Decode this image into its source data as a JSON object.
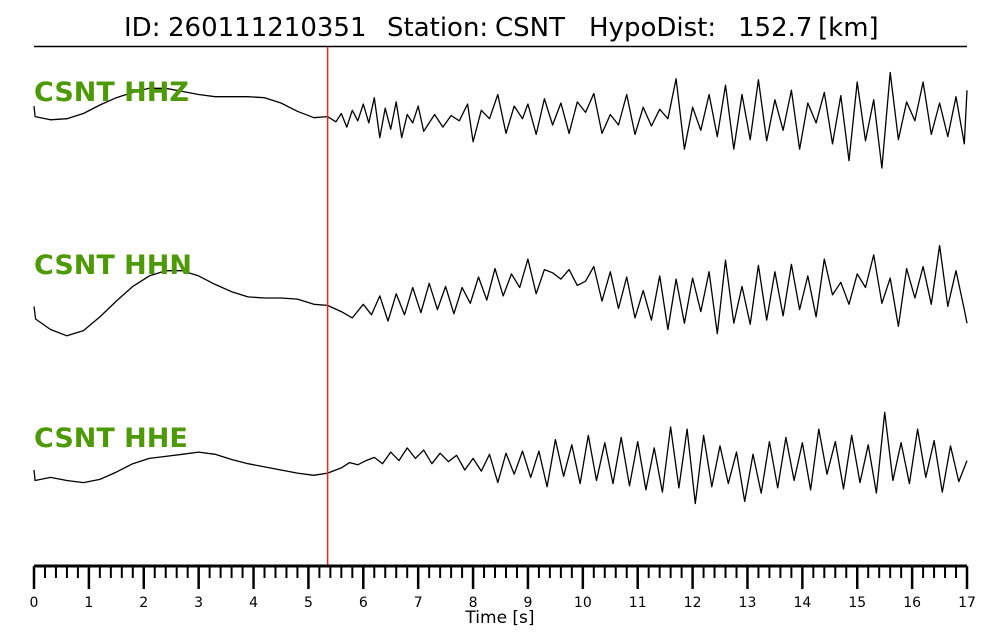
{
  "header": {
    "id_label": "ID:",
    "id_value": "260111210351",
    "station_label": "Station:",
    "station_value": "CSNT",
    "dist_label": "HypoDist:",
    "dist_value": "152.7",
    "dist_unit": "[km]"
  },
  "colors": {
    "trace": "#000000",
    "pick": "#e8261f",
    "channel_label": "#4e9a06",
    "axis": "#000000"
  },
  "chart_data": {
    "type": "line",
    "title": "ID: 260111210351   Station: CSNT   HypoDist:   152.7 [km]",
    "xlabel": "Time [s]",
    "ylabel": "",
    "xlim": [
      0,
      17
    ],
    "x_ticks": [
      0,
      1,
      2,
      3,
      4,
      5,
      6,
      7,
      8,
      9,
      10,
      11,
      12,
      13,
      14,
      15,
      16,
      17
    ],
    "x_minor_step": 0.2,
    "grid": false,
    "pick_time": 5.35,
    "series": [
      {
        "name": "CSNT HHZ",
        "points": [
          [
            0.0,
            0.9
          ],
          [
            0.02,
            0.4
          ],
          [
            0.3,
            0.25
          ],
          [
            0.6,
            0.3
          ],
          [
            0.9,
            0.55
          ],
          [
            1.2,
            0.95
          ],
          [
            1.5,
            1.3
          ],
          [
            1.8,
            1.55
          ],
          [
            2.1,
            1.75
          ],
          [
            2.4,
            1.75
          ],
          [
            2.7,
            1.6
          ],
          [
            3.0,
            1.45
          ],
          [
            3.3,
            1.35
          ],
          [
            3.6,
            1.35
          ],
          [
            3.9,
            1.35
          ],
          [
            4.2,
            1.3
          ],
          [
            4.5,
            1.05
          ],
          [
            4.8,
            0.65
          ],
          [
            5.1,
            0.35
          ],
          [
            5.35,
            0.4
          ],
          [
            5.5,
            0.15
          ],
          [
            5.6,
            0.55
          ],
          [
            5.7,
            -0.1
          ],
          [
            5.8,
            0.7
          ],
          [
            5.9,
            0.2
          ],
          [
            6.0,
            1.0
          ],
          [
            6.1,
            0.1
          ],
          [
            6.2,
            1.3
          ],
          [
            6.3,
            -0.6
          ],
          [
            6.4,
            0.8
          ],
          [
            6.5,
            -0.2
          ],
          [
            6.6,
            1.1
          ],
          [
            6.7,
            -0.6
          ],
          [
            6.8,
            0.5
          ],
          [
            6.9,
            0.1
          ],
          [
            7.0,
            0.9
          ],
          [
            7.1,
            -0.3
          ],
          [
            7.3,
            0.5
          ],
          [
            7.45,
            -0.1
          ],
          [
            7.6,
            0.45
          ],
          [
            7.75,
            0.2
          ],
          [
            7.9,
            1.0
          ],
          [
            8.0,
            -0.8
          ],
          [
            8.15,
            0.7
          ],
          [
            8.3,
            0.3
          ],
          [
            8.45,
            1.45
          ],
          [
            8.6,
            -0.4
          ],
          [
            8.75,
            0.9
          ],
          [
            8.9,
            0.3
          ],
          [
            9.0,
            1.0
          ],
          [
            9.15,
            -0.45
          ],
          [
            9.3,
            1.25
          ],
          [
            9.45,
            0.0
          ],
          [
            9.6,
            1.05
          ],
          [
            9.75,
            -0.4
          ],
          [
            9.9,
            1.1
          ],
          [
            10.05,
            0.6
          ],
          [
            10.2,
            1.5
          ],
          [
            10.35,
            -0.4
          ],
          [
            10.5,
            0.5
          ],
          [
            10.65,
            0.0
          ],
          [
            10.8,
            1.45
          ],
          [
            10.95,
            -0.45
          ],
          [
            11.1,
            0.85
          ],
          [
            11.25,
            -0.05
          ],
          [
            11.4,
            0.75
          ],
          [
            11.55,
            0.3
          ],
          [
            11.7,
            2.2
          ],
          [
            11.85,
            -1.15
          ],
          [
            12.0,
            0.85
          ],
          [
            12.15,
            -0.25
          ],
          [
            12.3,
            1.45
          ],
          [
            12.45,
            -0.55
          ],
          [
            12.6,
            1.9
          ],
          [
            12.75,
            -1.15
          ],
          [
            12.9,
            1.45
          ],
          [
            13.05,
            -0.7
          ],
          [
            13.2,
            2.15
          ],
          [
            13.35,
            -0.75
          ],
          [
            13.5,
            1.2
          ],
          [
            13.65,
            -0.25
          ],
          [
            13.8,
            1.65
          ],
          [
            13.95,
            -1.15
          ],
          [
            14.1,
            1.05
          ],
          [
            14.25,
            0.1
          ],
          [
            14.4,
            1.55
          ],
          [
            14.55,
            -0.9
          ],
          [
            14.7,
            1.4
          ],
          [
            14.85,
            -1.7
          ],
          [
            15.0,
            2.05
          ],
          [
            15.15,
            -0.75
          ],
          [
            15.3,
            1.2
          ],
          [
            15.45,
            -2.05
          ],
          [
            15.6,
            2.5
          ],
          [
            15.75,
            -0.7
          ],
          [
            15.9,
            1.1
          ],
          [
            16.05,
            0.2
          ],
          [
            16.2,
            2.05
          ],
          [
            16.35,
            -0.45
          ],
          [
            16.5,
            1.05
          ],
          [
            16.65,
            -0.55
          ],
          [
            16.8,
            1.35
          ],
          [
            16.95,
            -0.9
          ],
          [
            17.0,
            1.65
          ]
        ]
      },
      {
        "name": "CSNT HHN",
        "points": [
          [
            0.0,
            -0.4
          ],
          [
            0.03,
            -1.0
          ],
          [
            0.3,
            -1.5
          ],
          [
            0.6,
            -1.8
          ],
          [
            0.9,
            -1.55
          ],
          [
            1.2,
            -0.9
          ],
          [
            1.5,
            -0.15
          ],
          [
            1.8,
            0.55
          ],
          [
            2.1,
            1.05
          ],
          [
            2.4,
            1.3
          ],
          [
            2.7,
            1.3
          ],
          [
            3.0,
            1.05
          ],
          [
            3.3,
            0.65
          ],
          [
            3.6,
            0.3
          ],
          [
            3.9,
            0.05
          ],
          [
            4.2,
            0.0
          ],
          [
            4.5,
            0.0
          ],
          [
            4.8,
            -0.05
          ],
          [
            5.1,
            -0.3
          ],
          [
            5.35,
            -0.35
          ],
          [
            5.6,
            -0.65
          ],
          [
            5.8,
            -0.95
          ],
          [
            6.0,
            -0.3
          ],
          [
            6.15,
            -0.8
          ],
          [
            6.3,
            0.1
          ],
          [
            6.45,
            -1.1
          ],
          [
            6.6,
            0.2
          ],
          [
            6.75,
            -0.8
          ],
          [
            6.9,
            0.5
          ],
          [
            7.05,
            -0.7
          ],
          [
            7.2,
            0.7
          ],
          [
            7.35,
            -0.55
          ],
          [
            7.5,
            0.55
          ],
          [
            7.65,
            -0.75
          ],
          [
            7.8,
            0.5
          ],
          [
            7.95,
            -0.25
          ],
          [
            8.1,
            1.0
          ],
          [
            8.25,
            -0.1
          ],
          [
            8.4,
            1.4
          ],
          [
            8.55,
            0.1
          ],
          [
            8.7,
            1.15
          ],
          [
            8.85,
            0.5
          ],
          [
            9.0,
            1.85
          ],
          [
            9.15,
            0.2
          ],
          [
            9.3,
            1.35
          ],
          [
            9.45,
            1.2
          ],
          [
            9.6,
            0.9
          ],
          [
            9.75,
            1.35
          ],
          [
            9.9,
            0.6
          ],
          [
            10.05,
            0.8
          ],
          [
            10.2,
            1.5
          ],
          [
            10.35,
            -0.15
          ],
          [
            10.5,
            1.25
          ],
          [
            10.65,
            -0.5
          ],
          [
            10.8,
            1.0
          ],
          [
            10.95,
            -0.95
          ],
          [
            11.1,
            0.35
          ],
          [
            11.25,
            -1.05
          ],
          [
            11.4,
            1.05
          ],
          [
            11.55,
            -1.5
          ],
          [
            11.7,
            0.9
          ],
          [
            11.85,
            -1.2
          ],
          [
            12.0,
            0.95
          ],
          [
            12.15,
            -0.65
          ],
          [
            12.3,
            1.25
          ],
          [
            12.45,
            -1.7
          ],
          [
            12.6,
            1.8
          ],
          [
            12.75,
            -1.2
          ],
          [
            12.9,
            0.55
          ],
          [
            13.05,
            -1.25
          ],
          [
            13.2,
            1.55
          ],
          [
            13.35,
            -1.05
          ],
          [
            13.5,
            1.25
          ],
          [
            13.65,
            -0.85
          ],
          [
            13.8,
            1.6
          ],
          [
            13.95,
            -0.55
          ],
          [
            14.1,
            1.05
          ],
          [
            14.25,
            -0.9
          ],
          [
            14.4,
            1.85
          ],
          [
            14.55,
            0.15
          ],
          [
            14.7,
            0.75
          ],
          [
            14.85,
            -0.3
          ],
          [
            15.0,
            1.15
          ],
          [
            15.15,
            0.5
          ],
          [
            15.3,
            2.05
          ],
          [
            15.45,
            -0.25
          ],
          [
            15.6,
            0.95
          ],
          [
            15.75,
            -1.35
          ],
          [
            15.9,
            1.4
          ],
          [
            16.05,
            0.0
          ],
          [
            16.2,
            1.5
          ],
          [
            16.35,
            -0.3
          ],
          [
            16.5,
            2.5
          ],
          [
            16.65,
            -0.4
          ],
          [
            16.8,
            1.3
          ],
          [
            16.95,
            -0.55
          ],
          [
            17.0,
            -1.2
          ]
        ]
      },
      {
        "name": "CSNT HHE",
        "points": [
          [
            0.0,
            0.0
          ],
          [
            0.02,
            -0.5
          ],
          [
            0.3,
            -0.35
          ],
          [
            0.6,
            -0.5
          ],
          [
            0.9,
            -0.6
          ],
          [
            1.2,
            -0.45
          ],
          [
            1.5,
            -0.1
          ],
          [
            1.8,
            0.3
          ],
          [
            2.1,
            0.55
          ],
          [
            2.4,
            0.65
          ],
          [
            2.7,
            0.75
          ],
          [
            3.0,
            0.85
          ],
          [
            3.3,
            0.75
          ],
          [
            3.6,
            0.5
          ],
          [
            3.9,
            0.3
          ],
          [
            4.2,
            0.15
          ],
          [
            4.5,
            0.0
          ],
          [
            4.8,
            -0.15
          ],
          [
            5.1,
            -0.25
          ],
          [
            5.35,
            -0.15
          ],
          [
            5.6,
            0.1
          ],
          [
            5.75,
            0.35
          ],
          [
            5.9,
            0.25
          ],
          [
            6.05,
            0.45
          ],
          [
            6.2,
            0.6
          ],
          [
            6.35,
            0.3
          ],
          [
            6.5,
            0.85
          ],
          [
            6.65,
            0.45
          ],
          [
            6.8,
            1.05
          ],
          [
            6.95,
            0.55
          ],
          [
            7.1,
            0.95
          ],
          [
            7.25,
            0.3
          ],
          [
            7.4,
            0.8
          ],
          [
            7.55,
            0.4
          ],
          [
            7.7,
            0.7
          ],
          [
            7.85,
            0.0
          ],
          [
            8.0,
            0.55
          ],
          [
            8.15,
            -0.05
          ],
          [
            8.3,
            0.75
          ],
          [
            8.45,
            -0.6
          ],
          [
            8.6,
            0.8
          ],
          [
            8.75,
            -0.2
          ],
          [
            8.9,
            0.9
          ],
          [
            9.05,
            -0.35
          ],
          [
            9.2,
            0.9
          ],
          [
            9.35,
            -0.8
          ],
          [
            9.5,
            1.45
          ],
          [
            9.65,
            -0.3
          ],
          [
            9.8,
            1.2
          ],
          [
            9.95,
            -0.65
          ],
          [
            10.1,
            1.65
          ],
          [
            10.25,
            -0.5
          ],
          [
            10.4,
            1.3
          ],
          [
            10.55,
            -0.65
          ],
          [
            10.7,
            1.55
          ],
          [
            10.85,
            -0.75
          ],
          [
            11.0,
            1.35
          ],
          [
            11.15,
            -0.95
          ],
          [
            11.3,
            1.05
          ],
          [
            11.45,
            -1.05
          ],
          [
            11.6,
            2.05
          ],
          [
            11.75,
            -0.85
          ],
          [
            11.9,
            1.95
          ],
          [
            12.05,
            -1.6
          ],
          [
            12.2,
            1.65
          ],
          [
            12.35,
            -0.8
          ],
          [
            12.5,
            1.15
          ],
          [
            12.65,
            -0.65
          ],
          [
            12.8,
            0.85
          ],
          [
            12.95,
            -1.5
          ],
          [
            13.1,
            0.75
          ],
          [
            13.25,
            -1.1
          ],
          [
            13.4,
            1.35
          ],
          [
            13.55,
            -0.85
          ],
          [
            13.7,
            1.55
          ],
          [
            13.85,
            -0.5
          ],
          [
            14.0,
            1.3
          ],
          [
            14.15,
            -0.95
          ],
          [
            14.3,
            1.95
          ],
          [
            14.45,
            -0.2
          ],
          [
            14.6,
            1.35
          ],
          [
            14.75,
            -0.9
          ],
          [
            14.9,
            1.65
          ],
          [
            15.05,
            -0.6
          ],
          [
            15.2,
            1.2
          ],
          [
            15.35,
            -1.1
          ],
          [
            15.5,
            2.75
          ],
          [
            15.65,
            -0.5
          ],
          [
            15.8,
            1.3
          ],
          [
            15.95,
            -0.65
          ],
          [
            16.1,
            1.95
          ],
          [
            16.25,
            -0.35
          ],
          [
            16.4,
            1.4
          ],
          [
            16.55,
            -1.05
          ],
          [
            16.7,
            1.15
          ],
          [
            16.85,
            -0.55
          ],
          [
            17.0,
            0.45
          ]
        ]
      }
    ]
  }
}
